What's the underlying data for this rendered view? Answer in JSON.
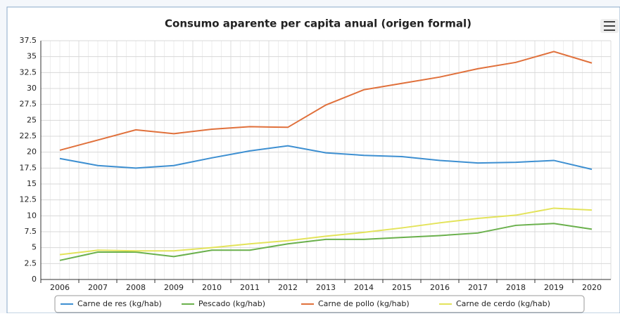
{
  "chart_data": {
    "type": "line",
    "title": "Consumo aparente per capita anual (origen formal)",
    "categories": [
      "2006",
      "2007",
      "2008",
      "2009",
      "2010",
      "2011",
      "2012",
      "2013",
      "2014",
      "2015",
      "2016",
      "2017",
      "2018",
      "2019",
      "2020"
    ],
    "series": [
      {
        "name": "Carne de res (kg/hab)",
        "color": "#3d8fd1",
        "values": [
          19.0,
          17.9,
          17.5,
          17.9,
          19.1,
          20.2,
          21.0,
          19.9,
          19.5,
          19.3,
          18.7,
          18.3,
          18.4,
          18.7,
          17.3
        ]
      },
      {
        "name": "Pescado (kg/hab)",
        "color": "#6ab04c",
        "values": [
          3.0,
          4.3,
          4.3,
          3.6,
          4.6,
          4.6,
          5.6,
          6.3,
          6.3,
          6.6,
          6.9,
          7.3,
          8.5,
          8.8,
          7.9
        ]
      },
      {
        "name": "Carne de pollo (kg/hab)",
        "color": "#e0703b",
        "values": [
          20.3,
          21.9,
          23.5,
          22.9,
          23.6,
          24.0,
          23.9,
          27.4,
          29.8,
          30.8,
          31.8,
          33.1,
          34.1,
          35.8,
          34.0
        ]
      },
      {
        "name": "Carne de cerdo (kg/hab)",
        "color": "#e3e35a",
        "values": [
          3.9,
          4.6,
          4.5,
          4.5,
          5.0,
          5.6,
          6.1,
          6.8,
          7.4,
          8.1,
          8.9,
          9.6,
          10.1,
          11.2,
          10.9
        ]
      }
    ],
    "ylim": [
      0,
      37.5
    ],
    "yticks": [
      0,
      2.5,
      5,
      7.5,
      10,
      12.5,
      15,
      17.5,
      20,
      22.5,
      25,
      27.5,
      30,
      32.5,
      35,
      37.5
    ],
    "grid": true
  }
}
